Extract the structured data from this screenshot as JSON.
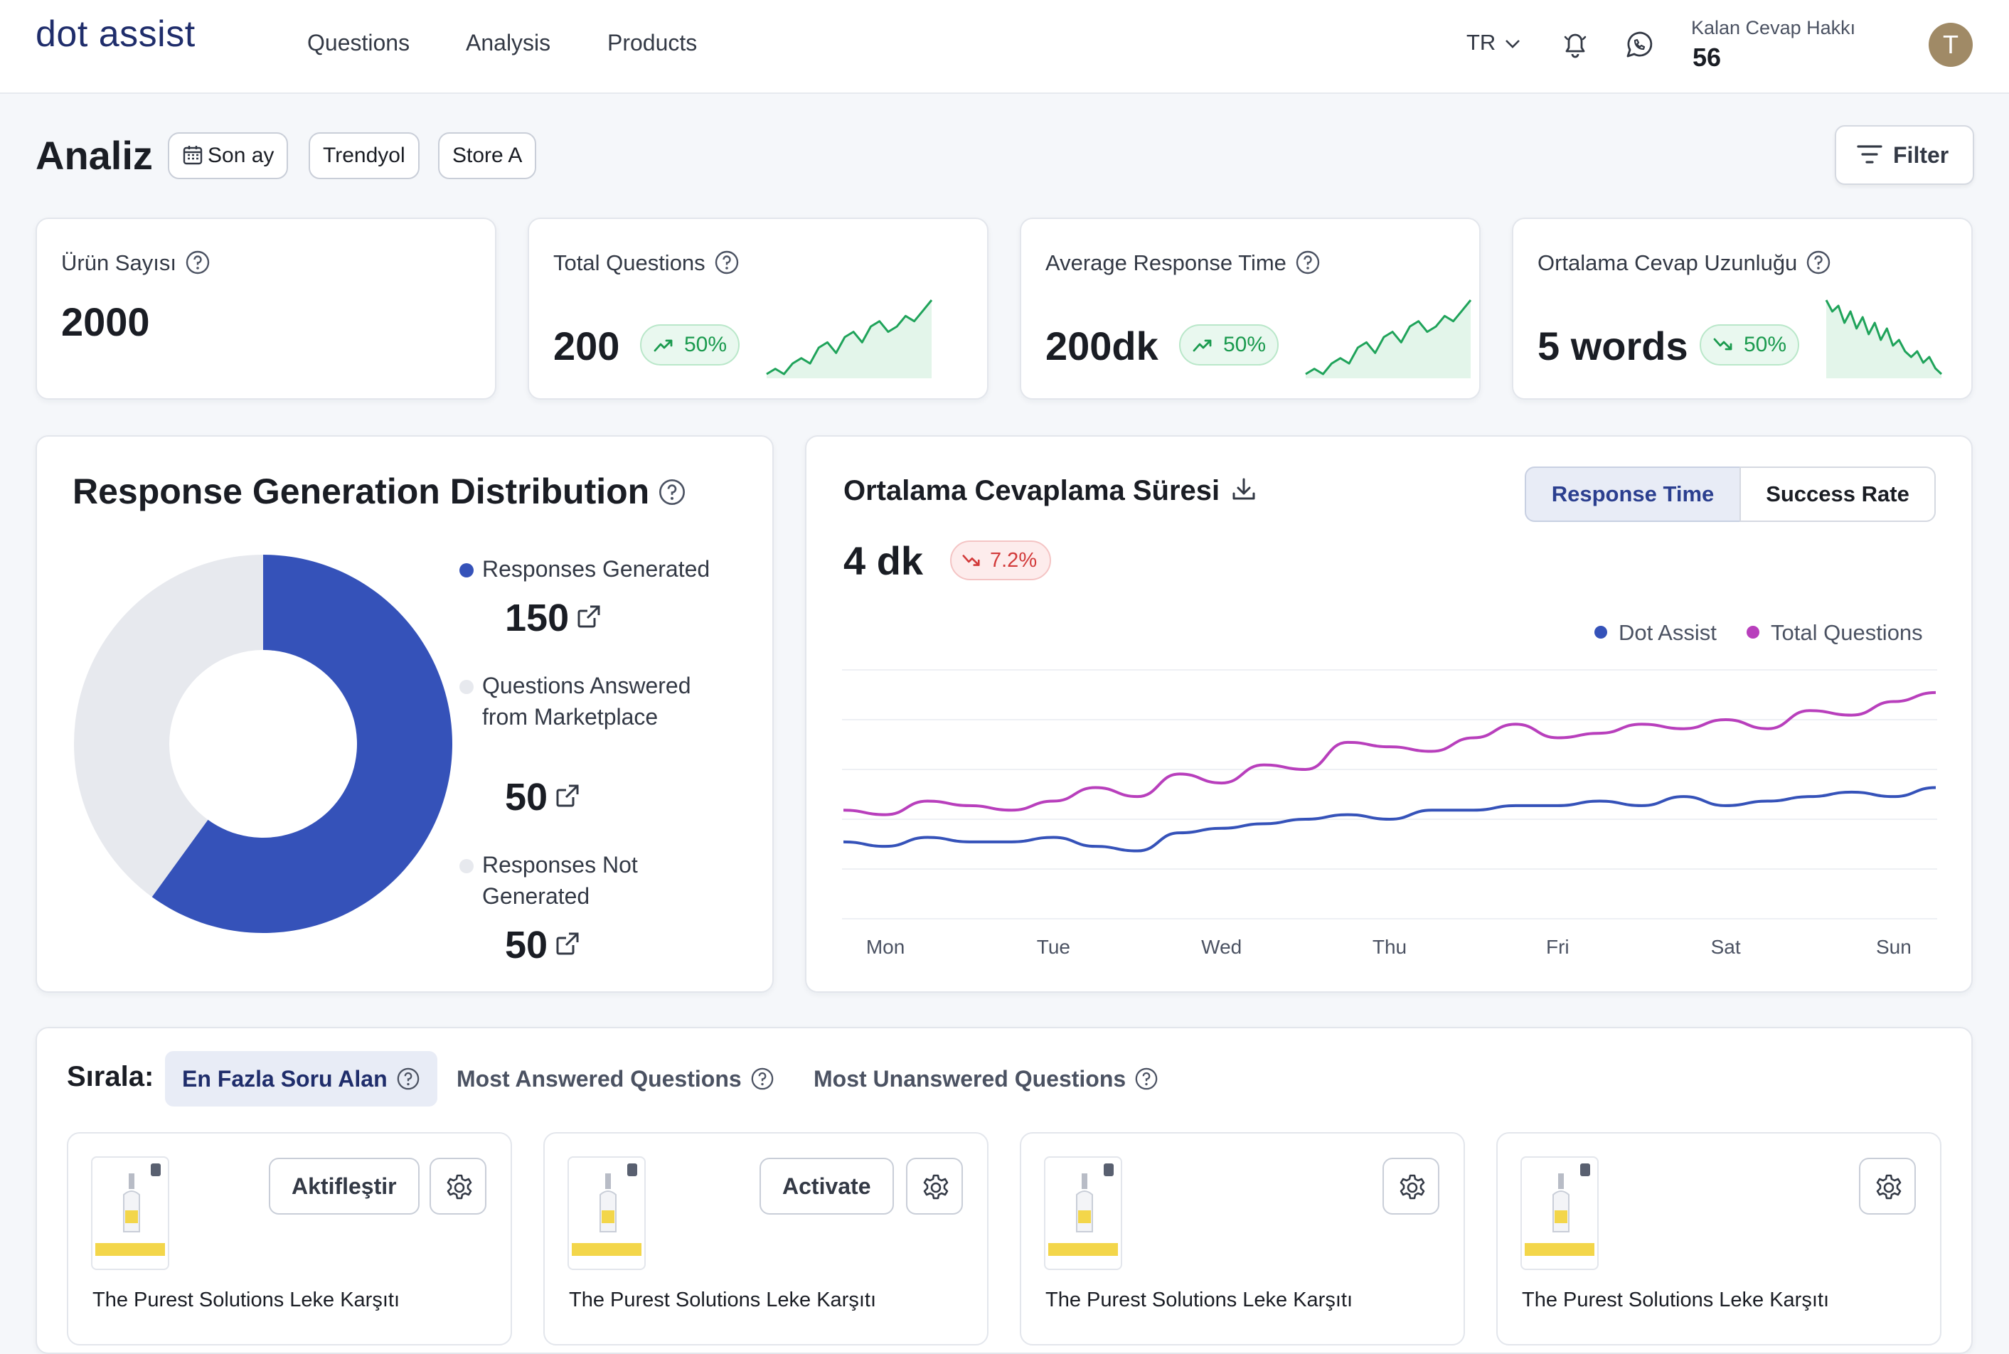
{
  "brand": {
    "logo_text": "dot assist",
    "accent": "#1f2d6b"
  },
  "nav": {
    "items": [
      "Questions",
      "Analysis",
      "Products"
    ]
  },
  "header": {
    "language": "TR",
    "credits_label": "Kalan Cevap Hakkı",
    "credits_value": "56",
    "avatar_initial": "T",
    "icons": [
      "bell-icon",
      "whatsapp-icon",
      "chevron-down-icon"
    ]
  },
  "filters": {
    "page_title": "Analiz",
    "chips": [
      "Son ay",
      "Trendyol",
      "Store A"
    ],
    "filter_button": "Filter"
  },
  "stats": [
    {
      "label": "Ürün Sayısı",
      "value": "2000"
    },
    {
      "label": "Total Questions",
      "value": "200",
      "change": "50%",
      "trend": "up",
      "spark": [
        2,
        3,
        2,
        4,
        5,
        4,
        7,
        8,
        6,
        9,
        10,
        8,
        11,
        12,
        10,
        11,
        13,
        12,
        14,
        16
      ]
    },
    {
      "label": "Average Response Time",
      "value": "200dk",
      "change": "50%",
      "trend": "up",
      "spark": [
        2,
        3,
        2,
        4,
        5,
        4,
        7,
        8,
        6,
        9,
        10,
        8,
        11,
        12,
        10,
        11,
        13,
        12,
        14,
        16
      ]
    },
    {
      "label": "Ortalama Cevap Uzunluğu",
      "value": "5 words",
      "change": "50%",
      "trend": "down",
      "spark": [
        16,
        14,
        15,
        12,
        14,
        11,
        13,
        10,
        12,
        9,
        11,
        8,
        9,
        7,
        6,
        7,
        5,
        6,
        4,
        3
      ]
    }
  ],
  "distribution": {
    "title": "Response Generation Distribution",
    "entries": [
      {
        "label": "Responses Generated",
        "value": "150",
        "color": "#3552b9"
      },
      {
        "label": "Questions Answered from Marketplace",
        "value": "50",
        "color": "#e7e9ee"
      },
      {
        "label": "Responses Not Generated",
        "value": "50",
        "color": "#e7e9ee"
      }
    ]
  },
  "response_chart": {
    "title": "Ortalama Cevaplama Süresi",
    "value": "4 dk",
    "change": "7.2%",
    "tabs": [
      "Response Time",
      "Success Rate"
    ],
    "active_tab": "Response Time"
  },
  "chart_data": [
    {
      "type": "pie",
      "categories": [
        "Responses Generated",
        "Questions Answered from Marketplace",
        "Responses Not Generated"
      ],
      "values": [
        150,
        50,
        50
      ],
      "title": "Response Generation Distribution"
    },
    {
      "type": "line",
      "title": "Ortalama Cevaplama Süresi",
      "categories": [
        "Mon",
        "Tue",
        "Wed",
        "Thu",
        "Fri",
        "Sat",
        "Sun"
      ],
      "x": [
        0,
        0.25,
        0.5,
        0.75,
        1,
        1.25,
        1.5,
        1.75,
        2,
        2.25,
        2.5,
        2.75,
        3,
        3.25,
        3.5,
        3.75,
        4,
        4.25,
        4.5,
        4.75,
        5,
        5.25,
        5.5,
        5.75,
        6,
        6.25,
        6.5
      ],
      "series": [
        {
          "name": "Dot Assist",
          "color": "#3552b9",
          "values": [
            1.7,
            1.6,
            1.8,
            1.7,
            1.7,
            1.8,
            1.6,
            1.5,
            1.9,
            2.0,
            2.1,
            2.2,
            2.3,
            2.2,
            2.4,
            2.4,
            2.5,
            2.5,
            2.6,
            2.5,
            2.7,
            2.5,
            2.6,
            2.7,
            2.8,
            2.7,
            2.9
          ]
        },
        {
          "name": "Total Questions",
          "color": "#b83fbc",
          "values": [
            2.4,
            2.3,
            2.6,
            2.5,
            2.4,
            2.6,
            2.9,
            2.7,
            3.2,
            3.0,
            3.4,
            3.3,
            3.9,
            3.8,
            3.7,
            4.0,
            4.3,
            4.0,
            4.1,
            4.3,
            4.2,
            4.4,
            4.2,
            4.6,
            4.5,
            4.8,
            5.0
          ]
        }
      ],
      "ylim": [
        0,
        5.5
      ],
      "grid": true,
      "legend": "top-right"
    }
  ],
  "sort": {
    "label": "Sırala:",
    "tabs": [
      "En Fazla Soru Alan",
      "Most Answered Questions",
      "Most Unanswered Questions"
    ],
    "active": "En Fazla Soru Alan"
  },
  "products": [
    {
      "title": "The Purest Solutions Leke Karşıtı",
      "action": "Aktifleştir"
    },
    {
      "title": "The Purest Solutions Leke Karşıtı",
      "action": "Activate"
    },
    {
      "title": "The Purest Solutions Leke Karşıtı",
      "action": ""
    },
    {
      "title": "The Purest Solutions Leke Karşıtı",
      "action": ""
    }
  ]
}
